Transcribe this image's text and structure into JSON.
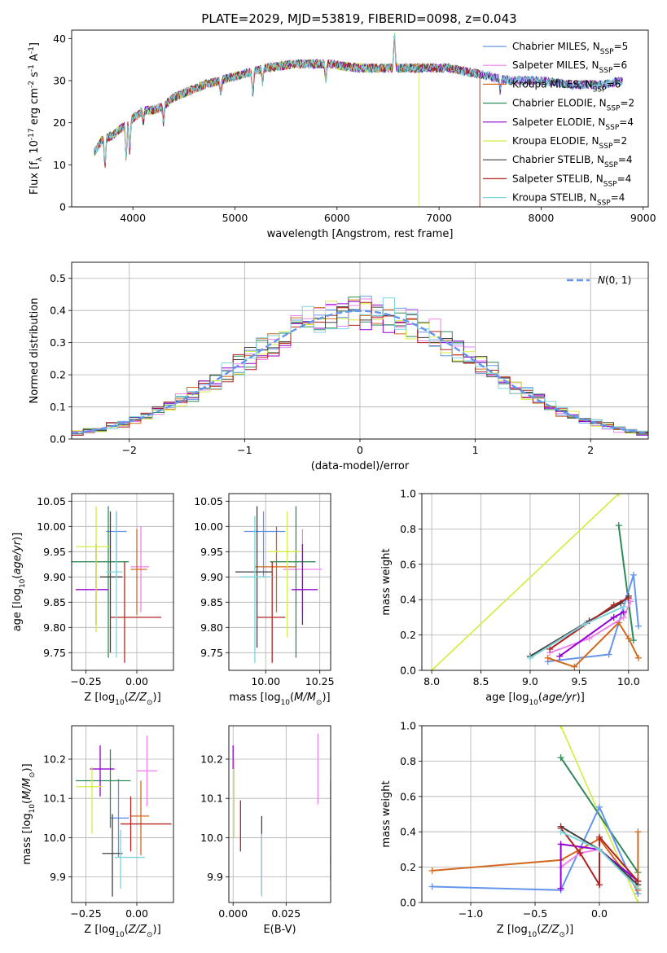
{
  "figure": {
    "title": "PLATE=2029, MJD=53819, FIBERID=0098, z=0.043",
    "colors": {
      "Chabrier MILES": "#6495ed",
      "Salpeter MILES": "#ee82ee",
      "Kroupa MILES": "#d2691e",
      "Chabrier ELODIE": "#2e8b57",
      "Salpeter ELODIE": "#9400d3",
      "Kroupa ELODIE": "#d4ed3c",
      "Chabrier STELIB": "#404040",
      "Salpeter STELIB": "#b22222",
      "Kroupa STELIB": "#7fd3dd"
    }
  },
  "chart_data": [
    {
      "id": "spectrum",
      "type": "line",
      "xlabel": "wavelength [Angstrom, rest frame]",
      "ylabel": "Flux [f_λ 10^-17 erg cm^-2 s^-1 A^-1]",
      "xlim": [
        3400,
        9050
      ],
      "ylim": [
        0,
        42
      ],
      "xticks": [
        4000,
        5000,
        6000,
        7000,
        8000,
        9000
      ],
      "yticks": [
        0,
        10,
        20,
        30,
        40
      ],
      "legend_position": "top-right",
      "series": [
        {
          "name": "Chabrier MILES",
          "nssp": 5
        },
        {
          "name": "Salpeter MILES",
          "nssp": 6
        },
        {
          "name": "Kroupa MILES",
          "nssp": 6
        },
        {
          "name": "Chabrier ELODIE",
          "nssp": 2
        },
        {
          "name": "Salpeter ELODIE",
          "nssp": 4
        },
        {
          "name": "Kroupa ELODIE",
          "nssp": 2
        },
        {
          "name": "Chabrier STELIB",
          "nssp": 4
        },
        {
          "name": "Salpeter STELIB",
          "nssp": 4
        },
        {
          "name": "Kroupa STELIB",
          "nssp": 4
        }
      ],
      "continuum": {
        "x": [
          3620,
          3700,
          3800,
          3900,
          4000,
          4100,
          4200,
          4300,
          4400,
          4500,
          4700,
          5000,
          5300,
          5600,
          5900,
          6200,
          6500,
          6800,
          7100,
          7300,
          7500,
          7700,
          8000,
          8300,
          8600,
          8800
        ],
        "y": [
          13,
          16,
          17,
          19,
          21,
          23,
          23,
          24,
          26,
          27,
          29,
          31,
          33,
          34,
          34,
          33,
          33,
          33,
          33,
          32,
          31,
          30,
          30,
          29,
          29,
          30
        ]
      },
      "truncations": {
        "Kroupa ELODIE": 6800,
        "Salpeter STELIB": 7400,
        "Kroupa MILES": 7400
      }
    },
    {
      "id": "residuals",
      "type": "bar",
      "xlabel": "(data-model)/error",
      "ylabel": "Normed distribution",
      "xlim": [
        -2.5,
        2.5
      ],
      "ylim": [
        0,
        0.55
      ],
      "xticks": [
        -2,
        -1,
        0,
        1,
        2
      ],
      "yticks": [
        0.0,
        0.1,
        0.2,
        0.3,
        0.4,
        0.5
      ],
      "grid": true,
      "legend_position": "top-right",
      "reference_curve": {
        "name": "N(0,1)",
        "type": "gaussian",
        "mean": 0,
        "sigma": 1
      },
      "bin_width": 0.1
    },
    {
      "id": "age_vs_z",
      "type": "scatter",
      "xlabel": "Z [log10(Z/Z⊙)]",
      "ylabel": "age [log10(age/yr)]",
      "xlim": [
        -0.32,
        0.18
      ],
      "ylim": [
        9.715,
        10.065
      ],
      "xticks": [
        -0.25,
        0.0
      ],
      "yticks": [
        9.75,
        9.8,
        9.85,
        9.9,
        9.95,
        10.0,
        10.05
      ],
      "grid": true,
      "points": [
        {
          "series": "Chabrier MILES",
          "x": -0.1,
          "xerr": [
            0.05,
            0.05
          ],
          "y": 9.99,
          "yerr": [
            0.09,
            0.04
          ]
        },
        {
          "series": "Salpeter MILES",
          "x": 0.02,
          "xerr": [
            0.05,
            0.04
          ],
          "y": 9.92,
          "yerr": [
            0.09,
            0.08
          ]
        },
        {
          "series": "Kroupa MILES",
          "x": 0.0,
          "xerr": [
            0.03,
            0.05
          ],
          "y": 9.915,
          "yerr": [
            0.09,
            0.08
          ]
        },
        {
          "series": "Chabrier ELODIE",
          "x": -0.14,
          "xerr": [
            0.18,
            0.1
          ],
          "y": 9.93,
          "yerr": [
            0.19,
            0.11
          ]
        },
        {
          "series": "Salpeter ELODIE",
          "x": -0.2,
          "xerr": [
            0.1,
            0.06
          ],
          "y": 9.875,
          "yerr": [
            0.07,
            0.09
          ]
        },
        {
          "series": "Kroupa ELODIE",
          "x": -0.2,
          "xerr": [
            0.1,
            0.07
          ],
          "y": 9.96,
          "yerr": [
            0.17,
            0.08
          ]
        },
        {
          "series": "Chabrier STELIB",
          "x": -0.13,
          "xerr": [
            0.05,
            0.06
          ],
          "y": 9.9,
          "yerr": [
            0.15,
            0.13
          ]
        },
        {
          "series": "Salpeter STELIB",
          "x": -0.06,
          "xerr": [
            0.07,
            0.18
          ],
          "y": 9.82,
          "yerr": [
            0.09,
            0.11
          ]
        },
        {
          "series": "Kroupa STELIB",
          "x": -0.1,
          "xerr": [
            0.05,
            0.03
          ],
          "y": 9.91,
          "yerr": [
            0.17,
            0.12
          ]
        }
      ]
    },
    {
      "id": "age_vs_mass",
      "type": "scatter",
      "xlabel": "mass [log10(M/M⊙)]",
      "ylabel": "",
      "xlim": [
        9.83,
        10.3
      ],
      "ylim": [
        9.715,
        10.065
      ],
      "xticks": [
        10.0,
        10.25
      ],
      "xticklabels": [
        "10.00",
        "10.25"
      ],
      "yticks": [
        9.75,
        9.8,
        9.85,
        9.9,
        9.95,
        10.0,
        10.05
      ],
      "grid": true,
      "points": [
        {
          "series": "Chabrier MILES",
          "x": 9.99,
          "xerr": [
            0.09,
            0.1
          ],
          "y": 9.99,
          "yerr": [
            0.09,
            0.04
          ]
        },
        {
          "series": "Salpeter MILES",
          "x": 10.17,
          "xerr": [
            0.09,
            0.09
          ],
          "y": 9.915,
          "yerr": [
            0.09,
            0.08
          ]
        },
        {
          "series": "Kroupa MILES",
          "x": 10.05,
          "xerr": [
            0.1,
            0.09
          ],
          "y": 9.92,
          "yerr": [
            0.09,
            0.08
          ]
        },
        {
          "series": "Chabrier ELODIE",
          "x": 10.14,
          "xerr": [
            0.12,
            0.09
          ],
          "y": 9.93,
          "yerr": [
            0.19,
            0.11
          ]
        },
        {
          "series": "Salpeter ELODIE",
          "x": 10.17,
          "xerr": [
            0.05,
            0.07
          ],
          "y": 9.875,
          "yerr": [
            0.07,
            0.09
          ]
        },
        {
          "series": "Kroupa ELODIE",
          "x": 10.1,
          "xerr": [
            0.09,
            0.06
          ],
          "y": 9.95,
          "yerr": [
            0.17,
            0.08
          ]
        },
        {
          "series": "Chabrier STELIB",
          "x": 9.96,
          "xerr": [
            0.1,
            0.07
          ],
          "y": 9.91,
          "yerr": [
            0.15,
            0.13
          ]
        },
        {
          "series": "Salpeter STELIB",
          "x": 10.03,
          "xerr": [
            0.07,
            0.06
          ],
          "y": 9.82,
          "yerr": [
            0.09,
            0.11
          ]
        },
        {
          "series": "Kroupa STELIB",
          "x": 9.95,
          "xerr": [
            0.07,
            0.08
          ],
          "y": 9.9,
          "yerr": [
            0.17,
            0.12
          ]
        }
      ]
    },
    {
      "id": "weight_vs_age",
      "type": "line",
      "xlabel": "age [log10(age/yr)]",
      "ylabel": "mass weight",
      "xlim": [
        7.9,
        10.2
      ],
      "ylim": [
        0.0,
        1.0
      ],
      "xticks": [
        8.0,
        8.5,
        9.0,
        9.5,
        10.0
      ],
      "yticks": [
        0.0,
        0.2,
        0.4,
        0.6,
        0.8,
        1.0
      ],
      "grid": true,
      "series": [
        {
          "name": "Kroupa ELODIE",
          "x": [
            8.0,
            9.9
          ],
          "y": [
            0.0,
            1.0
          ]
        },
        {
          "name": "Chabrier ELODIE",
          "x": [
            9.9,
            10.05
          ],
          "y": [
            0.82,
            0.17
          ]
        },
        {
          "name": "Chabrier MILES",
          "x": [
            9.18,
            9.8,
            10.05,
            10.1
          ],
          "y": [
            0.05,
            0.09,
            0.54,
            0.25
          ]
        },
        {
          "name": "Kroupa MILES",
          "x": [
            9.18,
            9.45,
            9.9,
            10.0,
            10.1
          ],
          "y": [
            0.07,
            0.02,
            0.27,
            0.18,
            0.07
          ]
        },
        {
          "name": "Salpeter MILES",
          "x": [
            9.2,
            9.6,
            9.95,
            10.02
          ],
          "y": [
            0.1,
            0.18,
            0.3,
            0.39
          ]
        },
        {
          "name": "Salpeter ELODIE",
          "x": [
            9.3,
            9.85,
            9.95
          ],
          "y": [
            0.08,
            0.3,
            0.33
          ]
        },
        {
          "name": "Chabrier STELIB",
          "x": [
            9.0,
            9.6,
            9.92,
            10.0
          ],
          "y": [
            0.08,
            0.28,
            0.38,
            0.42
          ]
        },
        {
          "name": "Salpeter STELIB",
          "x": [
            9.2,
            9.85,
            10.0
          ],
          "y": [
            0.12,
            0.37,
            0.41
          ]
        },
        {
          "name": "Kroupa STELIB",
          "x": [
            9.0,
            9.55,
            9.95
          ],
          "y": [
            0.07,
            0.26,
            0.36
          ]
        }
      ]
    },
    {
      "id": "mass_vs_z",
      "type": "scatter",
      "xlabel": "Z [log10(Z/Z⊙)]",
      "ylabel": "mass [log10(M/M⊙)]",
      "xlim": [
        -0.32,
        0.18
      ],
      "ylim": [
        9.835,
        10.285
      ],
      "xticks": [
        -0.25,
        0.0
      ],
      "yticks": [
        9.9,
        10.0,
        10.1,
        10.2
      ],
      "grid": true,
      "points": [
        {
          "series": "Chabrier MILES",
          "x": -0.09,
          "xerr": [
            0.04,
            0.05
          ],
          "y": 10.05,
          "yerr": [
            0.1,
            0.1
          ]
        },
        {
          "series": "Salpeter MILES",
          "x": 0.05,
          "xerr": [
            0.05,
            0.05
          ],
          "y": 10.17,
          "yerr": [
            0.09,
            0.09
          ]
        },
        {
          "series": "Kroupa MILES",
          "x": 0.02,
          "xerr": [
            0.05,
            0.04
          ],
          "y": 10.055,
          "yerr": [
            0.1,
            0.09
          ]
        },
        {
          "series": "Chabrier ELODIE",
          "x": -0.13,
          "xerr": [
            0.17,
            0.1
          ],
          "y": 10.145,
          "yerr": [
            0.12,
            0.08
          ]
        },
        {
          "series": "Salpeter ELODIE",
          "x": -0.18,
          "xerr": [
            0.05,
            0.07
          ],
          "y": 10.175,
          "yerr": [
            0.07,
            0.06
          ]
        },
        {
          "series": "Kroupa ELODIE",
          "x": -0.22,
          "xerr": [
            0.08,
            0.05
          ],
          "y": 10.13,
          "yerr": [
            0.12,
            0.05
          ]
        },
        {
          "series": "Chabrier STELIB",
          "x": -0.12,
          "xerr": [
            0.05,
            0.05
          ],
          "y": 9.96,
          "yerr": [
            0.11,
            0.1
          ]
        },
        {
          "series": "Salpeter STELIB",
          "x": -0.03,
          "xerr": [
            0.05,
            0.2
          ],
          "y": 10.035,
          "yerr": [
            0.07,
            0.07
          ]
        },
        {
          "series": "Kroupa STELIB",
          "x": -0.08,
          "xerr": [
            0.03,
            0.12
          ],
          "y": 9.95,
          "yerr": [
            0.08,
            0.07
          ]
        }
      ]
    },
    {
      "id": "mass_vs_ebv",
      "type": "scatter",
      "xlabel": "E(B-V)",
      "ylabel": "",
      "xlim": [
        -0.002,
        0.046
      ],
      "ylim": [
        9.835,
        10.285
      ],
      "xticks": [
        0.0,
        0.025
      ],
      "xticklabels": [
        "0.000",
        "0.025"
      ],
      "yticks": [
        9.9,
        10.0,
        10.1,
        10.2
      ],
      "grid": true,
      "points": [
        {
          "series": "Chabrier MILES",
          "x": 0.046,
          "y": 9.92,
          "yerr": [
            0.03,
            0.03
          ]
        },
        {
          "series": "Salpeter MILES",
          "x": 0.04,
          "y": 10.175,
          "yerr": [
            0.09,
            0.09
          ]
        },
        {
          "series": "Kroupa MILES",
          "x": 0.046,
          "y": 10.045,
          "yerr": [
            0.11,
            0.1
          ]
        },
        {
          "series": "Salpeter ELODIE",
          "x": 0.0,
          "y": 10.205,
          "yerr": [
            0.03,
            0.03
          ]
        },
        {
          "series": "Kroupa ELODIE",
          "x": 0.0005,
          "y": 10.1,
          "yerr": [
            0.1,
            0.1
          ]
        },
        {
          "series": "Salpeter STELIB",
          "x": 0.0035,
          "y": 10.03,
          "yerr": [
            0.065,
            0.065
          ]
        },
        {
          "series": "Chabrier STELIB",
          "x": 0.0135,
          "y": 9.955,
          "yerr": [
            0.1,
            0.1
          ]
        },
        {
          "series": "Kroupa STELIB",
          "x": 0.0135,
          "y": 9.93,
          "yerr": [
            0.08,
            0.08
          ]
        }
      ]
    },
    {
      "id": "weight_vs_z",
      "type": "line",
      "xlabel": "Z [log10(Z/Z⊙)]",
      "ylabel": "mass weight",
      "xlim": [
        -1.38,
        0.38
      ],
      "ylim": [
        0.0,
        1.0
      ],
      "xticks": [
        -1.0,
        -0.5,
        0.0
      ],
      "yticks": [
        0.0,
        0.2,
        0.4,
        0.6,
        0.8,
        1.0
      ],
      "grid": true,
      "series": [
        {
          "name": "Kroupa ELODIE",
          "x": [
            -0.3,
            0.3
          ],
          "y": [
            1.0,
            0.0
          ]
        },
        {
          "name": "Chabrier ELODIE",
          "x": [
            -0.3,
            0.3
          ],
          "y": [
            0.82,
            0.17
          ]
        },
        {
          "name": "Chabrier MILES",
          "x": [
            -1.3,
            -0.3,
            0.0,
            0.3
          ],
          "y": [
            0.09,
            0.07,
            0.54,
            0.05
          ]
        },
        {
          "name": "Kroupa MILES",
          "x": [
            -1.3,
            -0.3,
            0.0,
            0.3,
            0.3
          ],
          "y": [
            0.18,
            0.24,
            0.36,
            0.07,
            0.4
          ]
        },
        {
          "name": "Salpeter MILES",
          "x": [
            -0.3,
            -0.15,
            0.0,
            0.3
          ],
          "y": [
            0.2,
            0.28,
            0.3,
            0.1
          ]
        },
        {
          "name": "Salpeter ELODIE",
          "x": [
            -0.3,
            -0.3,
            0.0,
            0.3
          ],
          "y": [
            0.08,
            0.33,
            0.3,
            0.12
          ]
        },
        {
          "name": "Chabrier STELIB",
          "x": [
            -0.3,
            0.0,
            0.3
          ],
          "y": [
            0.43,
            0.3,
            0.1
          ]
        },
        {
          "name": "Salpeter STELIB",
          "x": [
            -0.3,
            -0.15,
            0.0,
            0.0,
            0.3
          ],
          "y": [
            0.42,
            0.28,
            0.1,
            0.37,
            0.12
          ]
        },
        {
          "name": "Kroupa STELIB",
          "x": [
            -0.3,
            0.0,
            0.3
          ],
          "y": [
            0.4,
            0.3,
            0.08
          ]
        }
      ]
    }
  ]
}
